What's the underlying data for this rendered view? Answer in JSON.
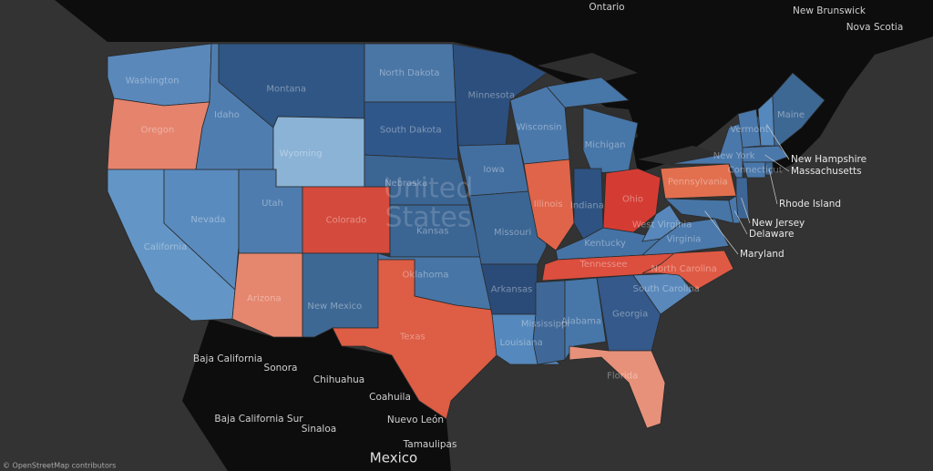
{
  "map": {
    "regions": [
      {
        "name": "Washington",
        "color": "#5a88bb"
      },
      {
        "name": "Oregon",
        "color": "#e6836d"
      },
      {
        "name": "California",
        "color": "#6396c6"
      },
      {
        "name": "Nevada",
        "color": "#5a8bbf"
      },
      {
        "name": "Idaho",
        "color": "#4f7db0"
      },
      {
        "name": "Montana",
        "color": "#2f5684"
      },
      {
        "name": "Wyoming",
        "color": "#8ab3d6"
      },
      {
        "name": "Utah",
        "color": "#4e7cae"
      },
      {
        "name": "Arizona",
        "color": "#e5866e"
      },
      {
        "name": "Colorado",
        "color": "#d44a3c"
      },
      {
        "name": "New Mexico",
        "color": "#3e6894"
      },
      {
        "name": "North Dakota",
        "color": "#4a76a6"
      },
      {
        "name": "South Dakota",
        "color": "#30578a"
      },
      {
        "name": "Nebraska",
        "color": "#3b6593"
      },
      {
        "name": "Kansas",
        "color": "#3b6593"
      },
      {
        "name": "Oklahoma",
        "color": "#4775a6"
      },
      {
        "name": "Texas",
        "color": "#dd5d45"
      },
      {
        "name": "Minnesota",
        "color": "#2c4f7d"
      },
      {
        "name": "Iowa",
        "color": "#436fa0"
      },
      {
        "name": "Missouri",
        "color": "#3b6593"
      },
      {
        "name": "Arkansas",
        "color": "#2a4b78"
      },
      {
        "name": "Louisiana",
        "color": "#5588bc"
      },
      {
        "name": "Wisconsin",
        "color": "#4a78ab"
      },
      {
        "name": "Illinois",
        "color": "#df6449"
      },
      {
        "name": "Michigan",
        "color": "#4776a8"
      },
      {
        "name": "Indiana",
        "color": "#2e5382"
      },
      {
        "name": "Ohio",
        "color": "#d43c33"
      },
      {
        "name": "Kentucky",
        "color": "#4573a5"
      },
      {
        "name": "Tennessee",
        "color": "#dc4e3e"
      },
      {
        "name": "Mississippi",
        "color": "#3f6898"
      },
      {
        "name": "Alabama",
        "color": "#4776a8"
      },
      {
        "name": "Georgia",
        "color": "#34598a"
      },
      {
        "name": "Florida",
        "color": "#e8917a"
      },
      {
        "name": "South Carolina",
        "color": "#5a88bb"
      },
      {
        "name": "North Carolina",
        "color": "#df5a44"
      },
      {
        "name": "Virginia",
        "color": "#4b79ab"
      },
      {
        "name": "West Virginia",
        "color": "#5888bb"
      },
      {
        "name": "Pennsylvania",
        "color": "#e2704f"
      },
      {
        "name": "New York",
        "color": "#4a78ab"
      },
      {
        "name": "Maryland",
        "color": "#4775a6"
      },
      {
        "name": "Delaware",
        "color": "#4a78ab"
      },
      {
        "name": "New Jersey",
        "color": "#3d6696"
      },
      {
        "name": "Vermont",
        "color": "#4a78ab"
      },
      {
        "name": "New Hampshire",
        "color": "#5588bc"
      },
      {
        "name": "Maine",
        "color": "#3e6894"
      },
      {
        "name": "Massachusetts",
        "color": "#4a78ab"
      },
      {
        "name": "Connecticut",
        "color": "#4a78ab"
      },
      {
        "name": "Rhode Island",
        "color": "#3e6894"
      }
    ],
    "country_label": [
      "United",
      "States"
    ],
    "places": [
      "Ontario",
      "New Brunswick",
      "Nova Scotia",
      "Baja California",
      "Sonora",
      "Chihuahua",
      "Coahuila",
      "Nuevo León",
      "Baja California Sur",
      "Sinaloa",
      "Tamaulipas",
      "Mexico"
    ],
    "attribution": "© OpenStreetMap contributors"
  }
}
